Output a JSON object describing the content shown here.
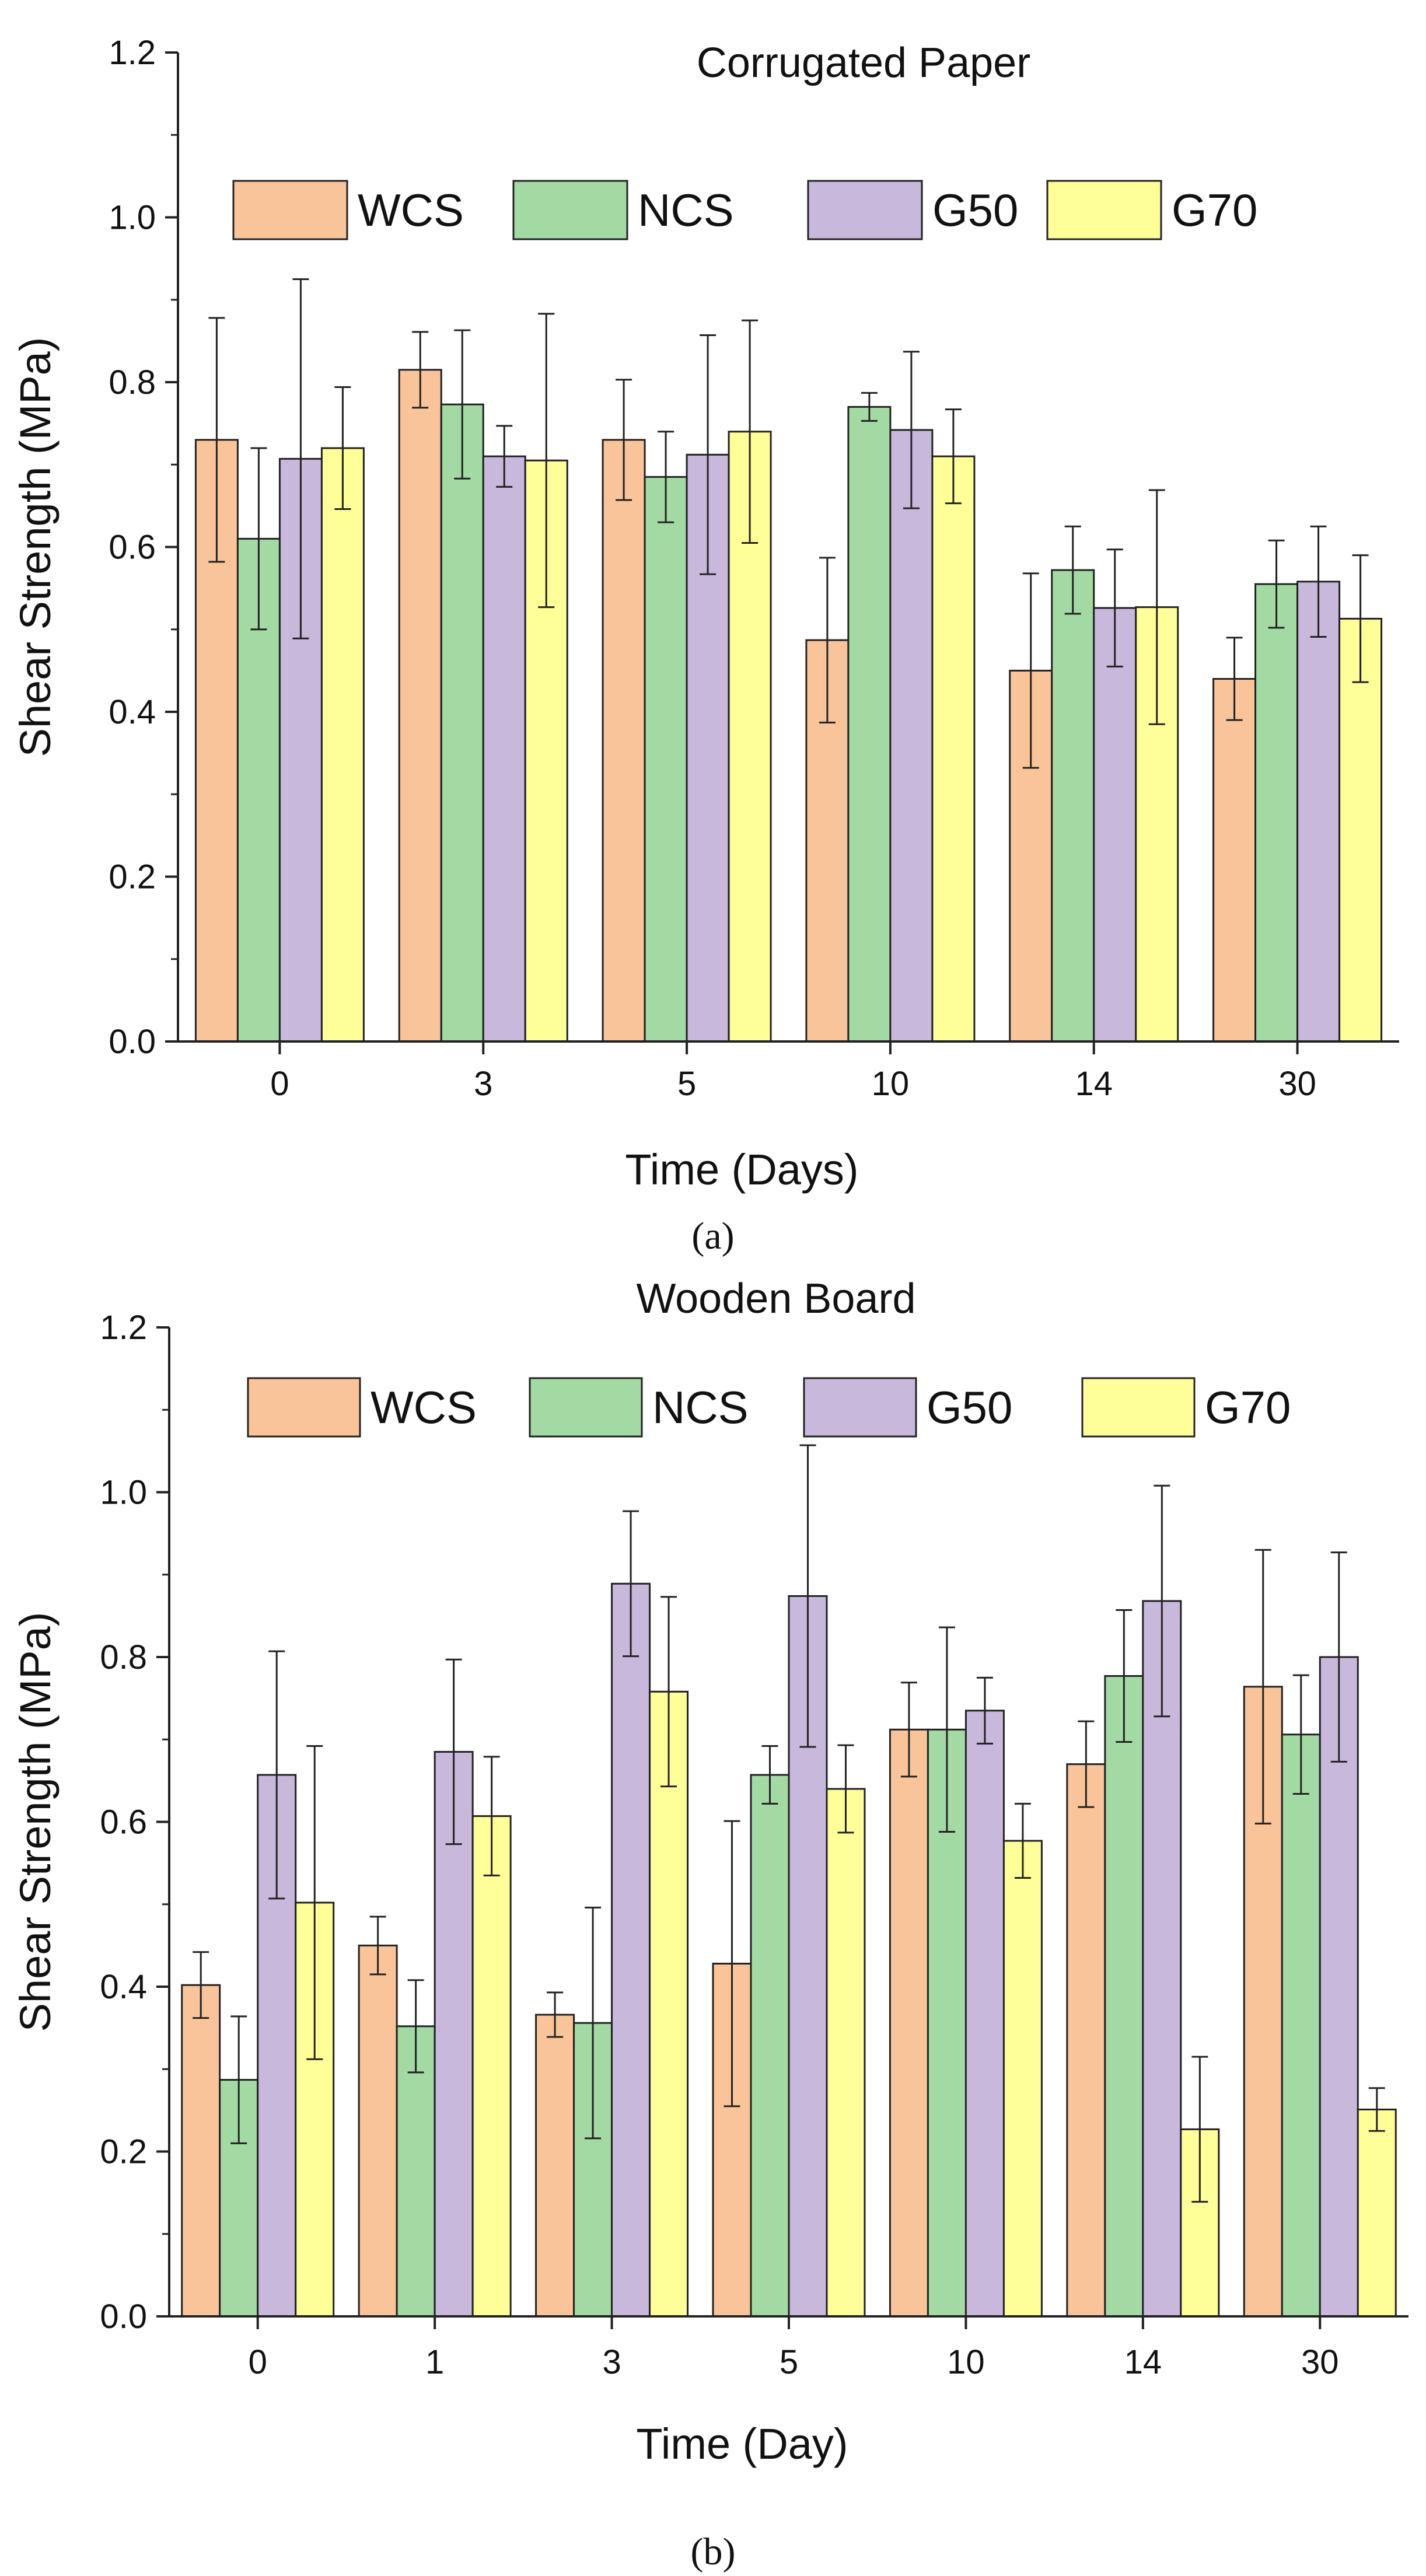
{
  "chart_data": [
    {
      "type": "bar",
      "panel": "(a)",
      "title": "Corrugated Paper",
      "xlabel": "Time (Days)",
      "ylabel": "Shear Strength (MPa)",
      "categories": [
        "0",
        "3",
        "5",
        "10",
        "14",
        "30"
      ],
      "ylim": [
        0,
        1.2
      ],
      "yticks": [
        "0.0",
        "0.2",
        "0.4",
        "0.6",
        "0.8",
        "1.0",
        "1.2"
      ],
      "grid": false,
      "legend": "top",
      "series": [
        {
          "name": "WCS",
          "color": "#f9c49a",
          "values": [
            0.73,
            0.815,
            0.73,
            0.487,
            0.45,
            0.44
          ],
          "errors": [
            0.148,
            0.046,
            0.073,
            0.1,
            0.118,
            0.05
          ]
        },
        {
          "name": "NCS",
          "color": "#a3d9a3",
          "values": [
            0.61,
            0.773,
            0.685,
            0.77,
            0.572,
            0.555
          ],
          "errors": [
            0.11,
            0.09,
            0.055,
            0.017,
            0.053,
            0.053
          ]
        },
        {
          "name": "G50",
          "color": "#c8b8dc",
          "values": [
            0.707,
            0.71,
            0.712,
            0.742,
            0.526,
            0.558
          ],
          "errors": [
            0.218,
            0.037,
            0.145,
            0.095,
            0.071,
            0.067
          ]
        },
        {
          "name": "G70",
          "color": "#ffff99",
          "values": [
            0.72,
            0.705,
            0.74,
            0.71,
            0.527,
            0.513
          ],
          "errors": [
            0.074,
            0.178,
            0.135,
            0.057,
            0.142,
            0.077
          ]
        }
      ]
    },
    {
      "type": "bar",
      "panel": "(b)",
      "title": "Wooden Board",
      "xlabel": "Time (Day)",
      "ylabel": "Shear Strength (MPa)",
      "categories": [
        "0",
        "1",
        "3",
        "5",
        "10",
        "14",
        "30"
      ],
      "ylim": [
        0,
        1.2
      ],
      "yticks": [
        "0.0",
        "0.2",
        "0.4",
        "0.6",
        "0.8",
        "1.0",
        "1.2"
      ],
      "grid": false,
      "legend": "top",
      "series": [
        {
          "name": "WCS",
          "color": "#f9c49a",
          "values": [
            0.402,
            0.45,
            0.366,
            0.428,
            0.712,
            0.67,
            0.764
          ],
          "errors": [
            0.04,
            0.035,
            0.027,
            0.173,
            0.057,
            0.052,
            0.166
          ]
        },
        {
          "name": "NCS",
          "color": "#a3d9a3",
          "values": [
            0.287,
            0.352,
            0.356,
            0.657,
            0.712,
            0.777,
            0.706
          ],
          "errors": [
            0.077,
            0.056,
            0.14,
            0.035,
            0.124,
            0.08,
            0.072
          ]
        },
        {
          "name": "G50",
          "color": "#c8b8dc",
          "values": [
            0.657,
            0.685,
            0.889,
            0.874,
            0.735,
            0.868,
            0.8
          ],
          "errors": [
            0.15,
            0.112,
            0.088,
            0.183,
            0.04,
            0.14,
            0.127
          ]
        },
        {
          "name": "G70",
          "color": "#ffff99",
          "values": [
            0.502,
            0.607,
            0.758,
            0.64,
            0.577,
            0.227,
            0.251
          ],
          "errors": [
            0.19,
            0.072,
            0.115,
            0.053,
            0.045,
            0.088,
            0.026
          ]
        }
      ]
    }
  ]
}
